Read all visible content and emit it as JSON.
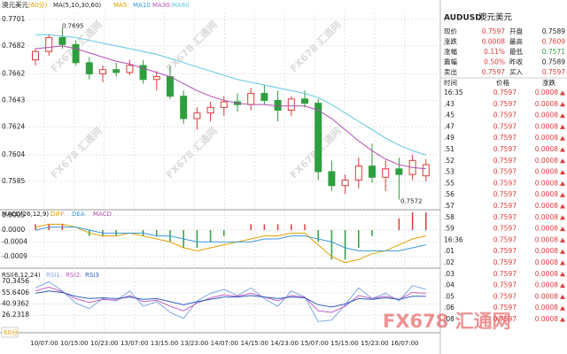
{
  "chart_data": [
    {
      "type": "candlestick",
      "title": "澳元美元",
      "period": "(60分)",
      "indicator": "MA(5,10,30,60)",
      "other_legend": [
        {
          "name": "MA5:",
          "color": "#e0a000"
        },
        {
          "name": "MA10",
          "color": "#3a9ad9"
        }
      ],
      "up_color": "#e03a3a",
      "down_color": "#2e9e3e",
      "open": [
        0.7672,
        0.7678,
        0.7688,
        0.7683,
        0.767,
        0.7662,
        0.7665,
        0.7663,
        0.7668,
        0.7658,
        0.766,
        0.7646,
        0.763,
        0.7634,
        0.7638,
        0.7642,
        0.764,
        0.7648,
        0.7643,
        0.7636,
        0.7644,
        0.7641,
        0.7592,
        0.7582,
        0.7586,
        0.7596,
        0.7588,
        0.7594,
        0.759,
        0.7589
      ],
      "high": [
        0.768,
        0.769,
        0.7695,
        0.7686,
        0.7674,
        0.7668,
        0.767,
        0.7672,
        0.7672,
        0.7664,
        0.7668,
        0.765,
        0.7638,
        0.7642,
        0.7646,
        0.7648,
        0.7652,
        0.7654,
        0.765,
        0.7646,
        0.765,
        0.7644,
        0.76,
        0.759,
        0.7602,
        0.7612,
        0.76,
        0.7602,
        0.7604,
        0.7601
      ],
      "low": [
        0.7668,
        0.7675,
        0.768,
        0.7668,
        0.7658,
        0.7656,
        0.766,
        0.7661,
        0.7655,
        0.765,
        0.7644,
        0.7626,
        0.7622,
        0.7628,
        0.7632,
        0.7635,
        0.7636,
        0.764,
        0.7628,
        0.7632,
        0.7638,
        0.7586,
        0.7578,
        0.7576,
        0.758,
        0.7584,
        0.7578,
        0.7572,
        0.7586,
        0.7585
      ],
      "close": [
        0.7678,
        0.7688,
        0.7683,
        0.767,
        0.7662,
        0.7665,
        0.7663,
        0.7668,
        0.7658,
        0.766,
        0.7646,
        0.763,
        0.7634,
        0.7638,
        0.7642,
        0.764,
        0.7648,
        0.7643,
        0.7636,
        0.7644,
        0.7641,
        0.7592,
        0.7582,
        0.7586,
        0.7596,
        0.7588,
        0.7594,
        0.759,
        0.76,
        0.7597
      ],
      "series": [
        {
          "name": "MA30:",
          "color": "#b04fb0",
          "values": [
            0.768,
            0.7681,
            0.7682,
            0.768,
            0.7677,
            0.7674,
            0.7671,
            0.7669,
            0.7666,
            0.7663,
            0.766,
            0.7655,
            0.765,
            0.7646,
            0.7643,
            0.7641,
            0.764,
            0.764,
            0.7639,
            0.7639,
            0.7639,
            0.7636,
            0.763,
            0.7622,
            0.7614,
            0.7607,
            0.7601,
            0.7597,
            0.7595,
            0.7594
          ]
        },
        {
          "name": "MA60",
          "color": "#5cc8e0",
          "values": [
            0.769,
            0.769,
            0.7689,
            0.7688,
            0.7686,
            0.7684,
            0.7682,
            0.768,
            0.7678,
            0.7676,
            0.7673,
            0.767,
            0.7667,
            0.7664,
            0.7661,
            0.7658,
            0.7656,
            0.7654,
            0.7652,
            0.765,
            0.7648,
            0.7645,
            0.764,
            0.7634,
            0.7628,
            0.7622,
            0.7616,
            0.7611,
            0.7607,
            0.7604
          ]
        }
      ],
      "high_label": 0.7695,
      "low_label": 0.7572,
      "ylim": [
        0.7566,
        0.7706
      ],
      "yticks": [
        0.7701,
        0.7682,
        0.7662,
        0.7643,
        0.7624,
        0.7604,
        0.7585
      ],
      "grid": true,
      "x_labels": [
        "10/07:00",
        "10/15:00",
        "10/23:00",
        "13/07:00",
        "13/15:00",
        "13/23:00",
        "14/07:00",
        "14/15:00",
        "14/23:00",
        "15/07:00",
        "15/15:00",
        "15/23:00",
        "16/07:00"
      ],
      "period_button": "60分"
    },
    {
      "type": "macd",
      "title": "MACD(26,12,9)",
      "pos_color": "#e03a3a",
      "neg_color": "#2e9e3e",
      "hist_name": "MACD",
      "hist_name_color": "#b04fb0",
      "values": [
        0.0002,
        0.0002,
        0.0002,
        0,
        -0.0002,
        -0.0002,
        -0.0002,
        0,
        -0.0002,
        -0.0002,
        -0.0004,
        -0.0006,
        -0.0006,
        -0.0004,
        -0.0002,
        0,
        0.0002,
        0.0002,
        0.0002,
        0.0002,
        0.0002,
        -0.0004,
        -0.001,
        -0.001,
        -0.0006,
        -0.0002,
        0,
        0.0004,
        0.0006,
        0.0006
      ],
      "series": [
        {
          "name": "DIFF",
          "color": "#e0a000",
          "values": [
            0.0001,
            0.0002,
            0.0002,
            0.0001,
            -0.0001,
            -0.0002,
            -0.0002,
            -0.0001,
            -0.0002,
            -0.0003,
            -0.0004,
            -0.0006,
            -0.0007,
            -0.0006,
            -0.0005,
            -0.0004,
            -0.0003,
            -0.0002,
            -0.0002,
            -0.0001,
            -0.0001,
            -0.0005,
            -0.0009,
            -0.0011,
            -0.001,
            -0.0008,
            -0.0007,
            -0.0005,
            -0.0003,
            -0.0002
          ]
        },
        {
          "name": "DEA",
          "color": "#3a9ad9",
          "values": [
            0,
            0.0001,
            0.0001,
            0.0001,
            0,
            -0.0001,
            -0.0001,
            -0.0001,
            -0.0001,
            -0.0002,
            -0.0002,
            -0.0003,
            -0.0004,
            -0.0004,
            -0.0004,
            -0.0004,
            -0.0004,
            -0.0003,
            -0.0003,
            -0.0002,
            -0.0002,
            -0.0003,
            -0.0004,
            -0.0006,
            -0.0007,
            -0.0007,
            -0.0007,
            -0.0007,
            -0.0006,
            -0.0005
          ]
        }
      ],
      "ylim": [
        -0.0012,
        0.0006
      ],
      "yticks": [
        0.0005,
        {
          "value": 0,
          "label": "0.0000"
        },
        -0.0004,
        -0.0009
      ],
      "grid": true
    },
    {
      "type": "line",
      "title": "RSI(6,12,24)",
      "series": [
        {
          "name": "RSI1:",
          "color": "#7fa9e0",
          "values": [
            62,
            70,
            58,
            42,
            35,
            48,
            45,
            58,
            38,
            44,
            30,
            22,
            45,
            55,
            60,
            52,
            62,
            48,
            38,
            58,
            50,
            18,
            20,
            40,
            62,
            48,
            55,
            45,
            65,
            60
          ]
        },
        {
          "name": "RSI2:",
          "color": "#c060c0",
          "values": [
            58,
            63,
            57,
            48,
            43,
            47,
            46,
            52,
            44,
            46,
            38,
            32,
            42,
            49,
            53,
            51,
            55,
            50,
            45,
            52,
            50,
            32,
            30,
            38,
            52,
            48,
            51,
            47,
            56,
            55
          ]
        },
        {
          "name": "RSI3",
          "color": "#2f5fc0",
          "values": [
            55,
            58,
            56,
            51,
            48,
            49,
            48,
            50,
            47,
            48,
            44,
            40,
            44,
            47,
            50,
            50,
            52,
            50,
            48,
            50,
            49,
            40,
            37,
            41,
            48,
            47,
            49,
            47,
            51,
            51
          ]
        }
      ],
      "ylim": [
        8,
        82
      ],
      "yticks": [
        70.3456,
        55.6406,
        40.9362,
        26.2318
      ],
      "grid": true
    }
  ],
  "watermark": "FX678 汇通网",
  "quote": {
    "symbol": "AUDUSD",
    "name": "澳元美元",
    "rows": [
      [
        "现价",
        "0.7597",
        "开盘",
        "0.7589"
      ],
      [
        "涨跌",
        "0.0008",
        "最高",
        "0.7609"
      ],
      [
        "涨幅",
        "0.11%",
        "最低",
        "0.7571"
      ],
      [
        "震幅",
        "0.50%",
        "昨收",
        "0.7589"
      ],
      [
        "卖出",
        "0.7597",
        "买入",
        "0.7597"
      ]
    ]
  },
  "ticks_table": {
    "headers": [
      "时间",
      "价格",
      "涨跌"
    ],
    "rows": [
      [
        "16:35",
        "0.7597",
        "0.0008"
      ],
      [
        ".43",
        "0.7597",
        "0.0008"
      ],
      [
        ".45",
        "0.7597",
        "0.0008"
      ],
      [
        ".47",
        "0.7597",
        "0.0008"
      ],
      [
        ".49",
        "0.7597",
        "0.0008"
      ],
      [
        ".51",
        "0.7597",
        "0.0008"
      ],
      [
        ".52",
        "0.7597",
        "0.0008"
      ],
      [
        ".53",
        "0.7597",
        "0.0008"
      ],
      [
        ".55",
        "0.7597",
        "0.0008"
      ],
      [
        ".56",
        "0.7597",
        "0.0008"
      ],
      [
        ".57",
        "0.7597",
        "0.0008"
      ],
      [
        ".58",
        "0.7597",
        "0.0008"
      ],
      [
        ".59",
        "0.7597",
        "0.0008"
      ],
      [
        "16:36",
        "0.7597",
        "0.0008"
      ],
      [
        ".01",
        "0.7597",
        "0.0008"
      ],
      [
        ".02",
        "0.7597",
        "0.0008"
      ],
      [
        ".03",
        "0.7597",
        "0.0008"
      ],
      [
        ".04",
        "0.7597",
        "0.0008"
      ],
      [
        ".05",
        "0.7597",
        "0.0008"
      ],
      [
        ".06",
        "0.7597",
        "0.0008"
      ],
      [
        ".08",
        "0.7597",
        "0.0008"
      ]
    ]
  }
}
